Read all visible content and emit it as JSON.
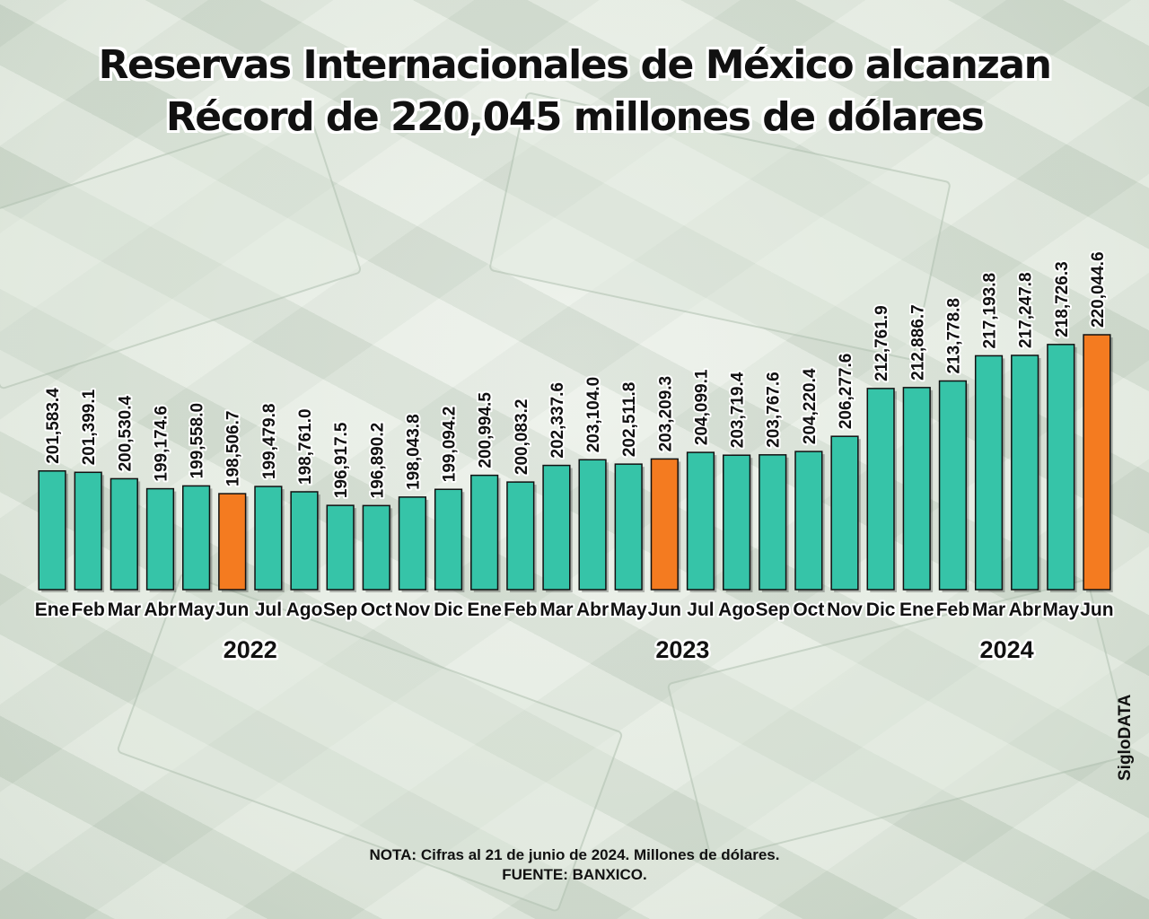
{
  "title": {
    "line1": "Reservas Internacionales de México alcanzan",
    "line2": "Récord de 220,045 millones de dólares"
  },
  "note": {
    "line1": "NOTA: Cifras al 21 de junio de 2024. Millones de dólares.",
    "line2": "FUENTE: BANXICO."
  },
  "brand": "SigloDATA",
  "colors": {
    "bar": "#36c4a8",
    "highlight": "#f47b20",
    "bar_outline": "#111111"
  },
  "chart_data": {
    "type": "bar",
    "title": "Reservas Internacionales de México alcanzan Récord de 220,045 millones de dólares",
    "xlabel": "",
    "ylabel": "Millones de dólares",
    "ylim": [
      185500,
      220044.6
    ],
    "grid": false,
    "legend": "none",
    "categories": [
      "Ene",
      "Feb",
      "Mar",
      "Abr",
      "May",
      "Jun",
      "Jul",
      "Ago",
      "Sep",
      "Oct",
      "Nov",
      "Dic",
      "Ene",
      "Feb",
      "Mar",
      "Abr",
      "May",
      "Jun",
      "Jul",
      "Ago",
      "Sep",
      "Oct",
      "Nov",
      "Dic",
      "Ene",
      "Feb",
      "Mar",
      "Abr",
      "May",
      "Jun"
    ],
    "years": [
      {
        "label": "2022",
        "start": 0,
        "end": 11
      },
      {
        "label": "2023",
        "start": 12,
        "end": 23
      },
      {
        "label": "2024",
        "start": 24,
        "end": 29
      }
    ],
    "values": [
      201583.4,
      201399.1,
      200530.4,
      199174.6,
      199558.0,
      198506.7,
      199479.8,
      198761.0,
      196917.5,
      196890.2,
      198043.8,
      199094.2,
      200994.5,
      200083.2,
      202337.6,
      203104.0,
      202511.8,
      203209.3,
      204099.1,
      203719.4,
      203767.6,
      204220.4,
      206277.6,
      212761.9,
      212886.7,
      213778.8,
      217193.8,
      217247.8,
      218726.3,
      220044.6
    ],
    "value_labels": [
      "201,583.4",
      "201,399.1",
      "200,530.4",
      "199,174.6",
      "199,558.0",
      "198,506.7",
      "199,479.8",
      "198,761.0",
      "196,917.5",
      "196,890.2",
      "198,043.8",
      "199,094.2",
      "200,994.5",
      "200,083.2",
      "202,337.6",
      "203,104.0",
      "202,511.8",
      "203,209.3",
      "204,099.1",
      "203,719.4",
      "203,767.6",
      "204,220.4",
      "206,277.6",
      "212,761.9",
      "212,886.7",
      "213,778.8",
      "217,193.8",
      "217,247.8",
      "218,726.3",
      "220,044.6"
    ],
    "highlighted": [
      5,
      17,
      29
    ]
  }
}
